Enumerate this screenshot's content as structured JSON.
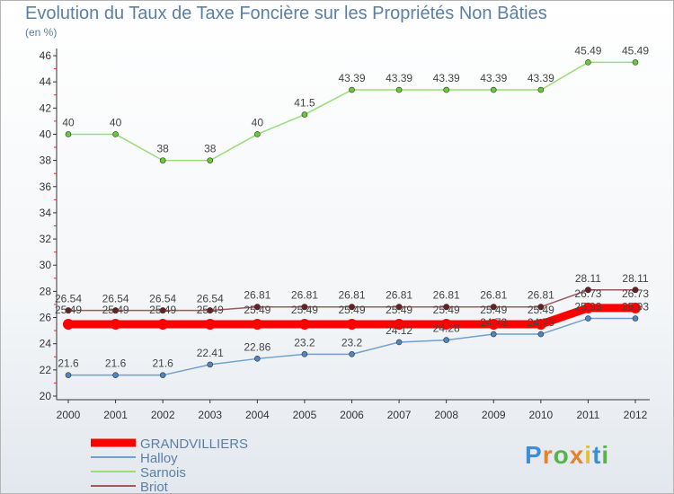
{
  "title": "Evolution du Taux de Taxe Foncière sur les Propriétés Non Bâties",
  "unit": "(en %)",
  "logo": {
    "text": [
      "P",
      "r",
      "o",
      "x",
      "i",
      "t",
      "i"
    ]
  },
  "chart_data": {
    "type": "line",
    "x": [
      "2000",
      "2001",
      "2002",
      "2003",
      "2004",
      "2005",
      "2006",
      "2007",
      "2008",
      "2009",
      "2010",
      "2011",
      "2012"
    ],
    "ylim": [
      20,
      46
    ],
    "yticks": [
      "20",
      "22",
      "24",
      "26",
      "28",
      "30",
      "32",
      "34",
      "36",
      "38",
      "40",
      "42",
      "44",
      "46"
    ],
    "grid": false,
    "legend_position": "bottom-left",
    "series": [
      {
        "name": "GRANDVILLIERS",
        "color": "#ff0000",
        "values": [
          25.49,
          25.49,
          25.49,
          25.49,
          25.49,
          25.49,
          25.49,
          25.49,
          25.49,
          25.49,
          25.49,
          26.73,
          26.73
        ],
        "labels": [
          "25.49",
          "25.49",
          "25.49",
          "25.49",
          "25.49",
          "25.49",
          "25.49",
          "25.49",
          "25.49",
          "25.49",
          "25.49",
          "26.73",
          "26.73"
        ]
      },
      {
        "name": "Halloy",
        "color": "#6fa0cf",
        "values": [
          21.6,
          21.6,
          21.6,
          22.41,
          22.86,
          23.2,
          23.2,
          24.12,
          24.28,
          24.73,
          24.73,
          25.93,
          25.93
        ],
        "labels": [
          "21.6",
          "21.6",
          "21.6",
          "22.41",
          "22.86",
          "23.2",
          "23.2",
          "24.12",
          "24.28",
          "24.73",
          "24.73",
          "25.93",
          "25.93"
        ]
      },
      {
        "name": "Sarnois",
        "color": "#99dd77",
        "values": [
          40,
          40,
          38,
          38,
          40,
          41.5,
          43.39,
          43.39,
          43.39,
          43.39,
          43.39,
          45.49,
          45.49
        ],
        "labels": [
          "40",
          "40",
          "38",
          "38",
          "40",
          "41.5",
          "43.39",
          "43.39",
          "43.39",
          "43.39",
          "43.39",
          "45.49",
          "45.49"
        ]
      },
      {
        "name": "Briot",
        "color": "#a05a5a",
        "values": [
          26.54,
          26.54,
          26.54,
          26.54,
          26.81,
          26.81,
          26.81,
          26.81,
          26.81,
          26.81,
          26.81,
          28.11,
          28.11
        ],
        "labels": [
          "26.54",
          "26.54",
          "26.54",
          "26.54",
          "26.81",
          "26.81",
          "26.81",
          "26.81",
          "26.81",
          "26.81",
          "26.81",
          "28.11",
          "28.11"
        ]
      }
    ]
  }
}
